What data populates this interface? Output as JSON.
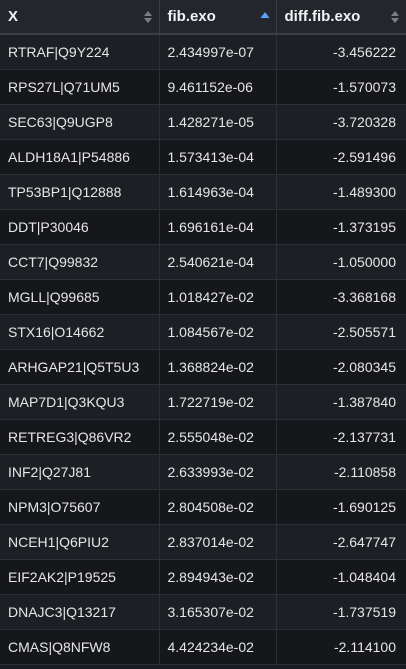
{
  "table": {
    "columns": [
      {
        "label": "X",
        "sort": "none"
      },
      {
        "label": "fib.exo",
        "sort": "asc"
      },
      {
        "label": "diff.fib.exo",
        "sort": "none"
      }
    ],
    "rows": [
      [
        "RTRAF|Q9Y224",
        "2.434997e-07",
        "-3.456222"
      ],
      [
        "RPS27L|Q71UM5",
        "9.461152e-06",
        "-1.570073"
      ],
      [
        "SEC63|Q9UGP8",
        "1.428271e-05",
        "-3.720328"
      ],
      [
        "ALDH18A1|P54886",
        "1.573413e-04",
        "-2.591496"
      ],
      [
        "TP53BP1|Q12888",
        "1.614963e-04",
        "-1.489300"
      ],
      [
        "DDT|P30046",
        "1.696161e-04",
        "-1.373195"
      ],
      [
        "CCT7|Q99832",
        "2.540621e-04",
        "-1.050000"
      ],
      [
        "MGLL|Q99685",
        "1.018427e-02",
        "-3.368168"
      ],
      [
        "STX16|O14662",
        "1.084567e-02",
        "-2.505571"
      ],
      [
        "ARHGAP21|Q5T5U3",
        "1.368824e-02",
        "-2.080345"
      ],
      [
        "MAP7D1|Q3KQU3",
        "1.722719e-02",
        "-1.387840"
      ],
      [
        "RETREG3|Q86VR2",
        "2.555048e-02",
        "-2.137731"
      ],
      [
        "INF2|Q27J81",
        "2.633993e-02",
        "-2.110858"
      ],
      [
        "NPM3|O75607",
        "2.804508e-02",
        "-1.690125"
      ],
      [
        "NCEH1|Q6PIU2",
        "2.837014e-02",
        "-2.647747"
      ],
      [
        "EIF2AK2|P19525",
        "2.894943e-02",
        "-1.048404"
      ],
      [
        "DNAJC3|Q13217",
        "3.165307e-02",
        "-1.737519"
      ],
      [
        "CMAS|Q8NFW8",
        "4.424234e-02",
        "-2.114100"
      ]
    ]
  },
  "colors": {
    "header_bg": "#23272d",
    "row_odd": "#1c1f23",
    "row_even": "#15171a",
    "sort_active": "#5aa2ff",
    "sort_inactive": "#7a7f86"
  },
  "icons": {
    "sort_none": "sort-arrows-icon",
    "sort_asc": "sort-ascending-icon"
  }
}
